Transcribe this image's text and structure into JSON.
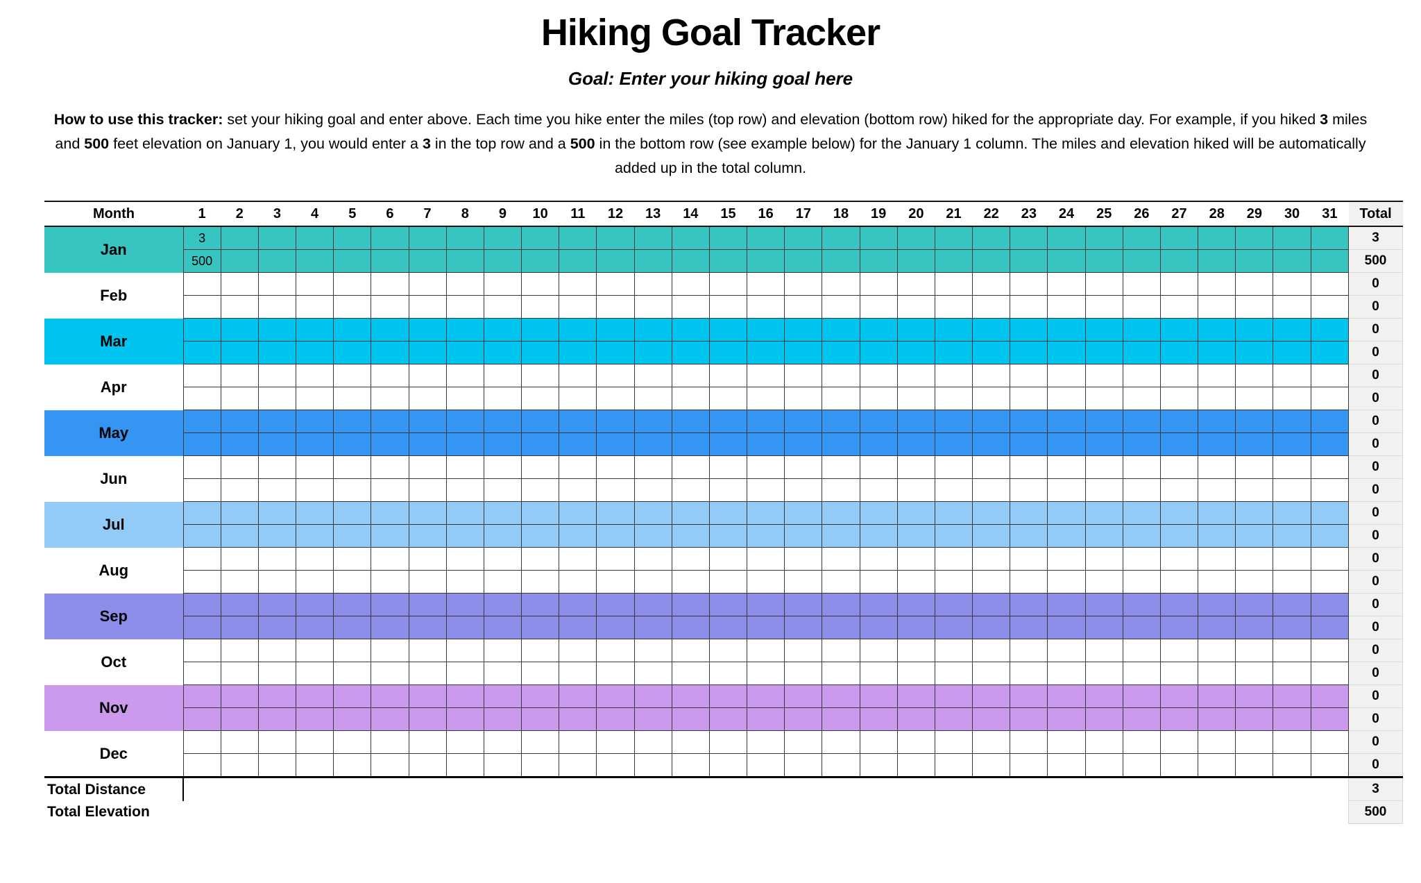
{
  "title": "Hiking Goal Tracker",
  "subtitle": "Goal: Enter your hiking goal here",
  "instructions": {
    "segments": [
      {
        "text": "How to use this tracker:",
        "bold": true
      },
      {
        "text": " set your hiking goal and enter above. Each time you hike enter the miles (top row) and elevation (bottom row) hiked for the appropriate day. For example, if you hiked ",
        "bold": false
      },
      {
        "text": "3",
        "bold": true
      },
      {
        "text": " miles and ",
        "bold": false
      },
      {
        "text": "500",
        "bold": true
      },
      {
        "text": " feet elevation on January 1, you would enter a ",
        "bold": false
      },
      {
        "text": "3",
        "bold": true
      },
      {
        "text": " in the top row and a ",
        "bold": false
      },
      {
        "text": "500",
        "bold": true
      },
      {
        "text": " in the bottom row (see example below) for the January 1 column. The miles and elevation hiked will be automatically added up in the total column.",
        "bold": false
      }
    ]
  },
  "table": {
    "month_header": "Month",
    "total_header": "Total",
    "day_headers": [
      "1",
      "2",
      "3",
      "4",
      "5",
      "6",
      "7",
      "8",
      "9",
      "10",
      "11",
      "12",
      "13",
      "14",
      "15",
      "16",
      "17",
      "18",
      "19",
      "20",
      "21",
      "22",
      "23",
      "24",
      "25",
      "26",
      "27",
      "28",
      "29",
      "30",
      "31"
    ],
    "months": [
      {
        "label": "Jan",
        "color": "#38C5C1",
        "miles": {
          "1": "3"
        },
        "elevation": {
          "1": "500"
        },
        "total_miles": "3",
        "total_elevation": "500"
      },
      {
        "label": "Feb",
        "color": "#FFFFFF",
        "miles": {},
        "elevation": {},
        "total_miles": "0",
        "total_elevation": "0"
      },
      {
        "label": "Mar",
        "color": "#00C4F0",
        "miles": {},
        "elevation": {},
        "total_miles": "0",
        "total_elevation": "0"
      },
      {
        "label": "Apr",
        "color": "#FFFFFF",
        "miles": {},
        "elevation": {},
        "total_miles": "0",
        "total_elevation": "0"
      },
      {
        "label": "May",
        "color": "#3595F2",
        "miles": {},
        "elevation": {},
        "total_miles": "0",
        "total_elevation": "0"
      },
      {
        "label": "Jun",
        "color": "#FFFFFF",
        "miles": {},
        "elevation": {},
        "total_miles": "0",
        "total_elevation": "0"
      },
      {
        "label": "Jul",
        "color": "#92CBF8",
        "miles": {},
        "elevation": {},
        "total_miles": "0",
        "total_elevation": "0"
      },
      {
        "label": "Aug",
        "color": "#FFFFFF",
        "miles": {},
        "elevation": {},
        "total_miles": "0",
        "total_elevation": "0"
      },
      {
        "label": "Sep",
        "color": "#8C8CE9",
        "miles": {},
        "elevation": {},
        "total_miles": "0",
        "total_elevation": "0"
      },
      {
        "label": "Oct",
        "color": "#FFFFFF",
        "miles": {},
        "elevation": {},
        "total_miles": "0",
        "total_elevation": "0"
      },
      {
        "label": "Nov",
        "color": "#CC9AEC",
        "miles": {},
        "elevation": {},
        "total_miles": "0",
        "total_elevation": "0"
      },
      {
        "label": "Dec",
        "color": "#FFFFFF",
        "miles": {},
        "elevation": {},
        "total_miles": "0",
        "total_elevation": "0"
      }
    ],
    "footer": {
      "distance_label": "Total Distance",
      "distance_total": "3",
      "elevation_label": "Total Elevation",
      "elevation_total": "500"
    }
  },
  "colors": {
    "total_column_bg": "#F1F1EF",
    "grid_border": "#383838",
    "header_rule": "#141414"
  }
}
